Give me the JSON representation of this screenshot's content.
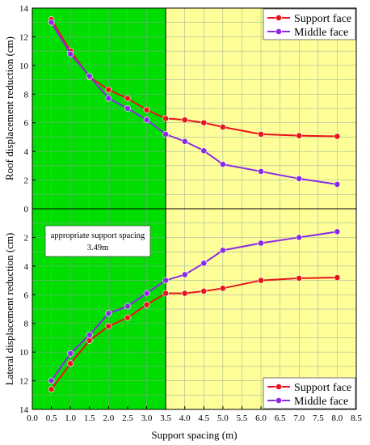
{
  "chart_data": [
    {
      "type": "line",
      "panel": "top",
      "ylabel": "Roof displacement reduction (cm)",
      "xlim": [
        0.0,
        8.5
      ],
      "ylim": [
        0,
        14
      ],
      "y_ticks": [
        0,
        2,
        4,
        6,
        8,
        10,
        12,
        14
      ],
      "legend": {
        "placement": "top-right",
        "entries": [
          "Support face",
          "Middle face"
        ]
      },
      "series": [
        {
          "name": "Support face",
          "color": "#e8141b",
          "x": [
            0.5,
            1.0,
            1.5,
            2.0,
            2.5,
            3.0,
            3.5,
            4.0,
            4.5,
            5.0,
            6.0,
            7.0,
            8.0
          ],
          "y": [
            13.2,
            11.0,
            9.2,
            8.3,
            7.7,
            6.9,
            6.3,
            6.2,
            6.0,
            5.7,
            5.2,
            5.1,
            5.05
          ]
        },
        {
          "name": "Middle face",
          "color": "#8a2be2",
          "x": [
            0.5,
            1.0,
            1.5,
            2.0,
            2.5,
            3.0,
            3.5,
            4.0,
            4.5,
            5.0,
            6.0,
            7.0,
            8.0
          ],
          "y": [
            13.0,
            10.8,
            9.25,
            7.7,
            7.0,
            6.2,
            5.2,
            4.7,
            4.05,
            3.1,
            2.6,
            2.1,
            1.7
          ]
        }
      ],
      "shading": [
        {
          "from": 0.0,
          "to": 3.5,
          "color": "#00dd00"
        },
        {
          "from": 3.5,
          "to": 8.5,
          "color": "#ffff99"
        }
      ],
      "grid": true
    },
    {
      "type": "line",
      "panel": "bottom",
      "ylabel": "Lateral displacement reduction (cm)",
      "xlabel": "Support spacing (m)",
      "xlim": [
        0.0,
        8.5
      ],
      "x_ticks": [
        "0.0",
        "0.5",
        "1.0",
        "1.5",
        "2.0",
        "2.5",
        "3.0",
        "3.5",
        "4.0",
        "4.5",
        "5.0",
        "5.5",
        "6.0",
        "6.5",
        "7.0",
        "7.5",
        "8.0",
        "8.5"
      ],
      "ylim": [
        0,
        14
      ],
      "y_inverted": true,
      "y_ticks": [
        2,
        4,
        6,
        8,
        10,
        12,
        14
      ],
      "legend": {
        "placement": "bottom-right",
        "entries": [
          "Support face",
          "Middle face"
        ]
      },
      "annotation": [
        "appropriate support spacing",
        "3.49m"
      ],
      "series": [
        {
          "name": "Support face",
          "color": "#e8141b",
          "x": [
            0.5,
            1.0,
            1.5,
            2.0,
            2.5,
            3.0,
            3.5,
            4.0,
            4.5,
            5.0,
            6.0,
            7.0,
            8.0
          ],
          "y": [
            12.6,
            10.8,
            9.2,
            8.2,
            7.6,
            6.7,
            5.9,
            5.9,
            5.75,
            5.55,
            5.0,
            4.85,
            4.8
          ]
        },
        {
          "name": "Middle face",
          "color": "#8a2be2",
          "x": [
            0.5,
            1.0,
            1.5,
            2.0,
            2.5,
            3.0,
            3.5,
            4.0,
            4.5,
            5.0,
            6.0,
            7.0,
            8.0
          ],
          "y": [
            12.0,
            10.1,
            8.8,
            7.3,
            6.8,
            5.9,
            5.0,
            4.6,
            3.8,
            2.9,
            2.4,
            2.0,
            1.6
          ]
        }
      ],
      "shading": [
        {
          "from": 0.0,
          "to": 3.5,
          "color": "#00dd00"
        },
        {
          "from": 3.5,
          "to": 8.5,
          "color": "#ffff99"
        }
      ],
      "grid": true
    }
  ]
}
